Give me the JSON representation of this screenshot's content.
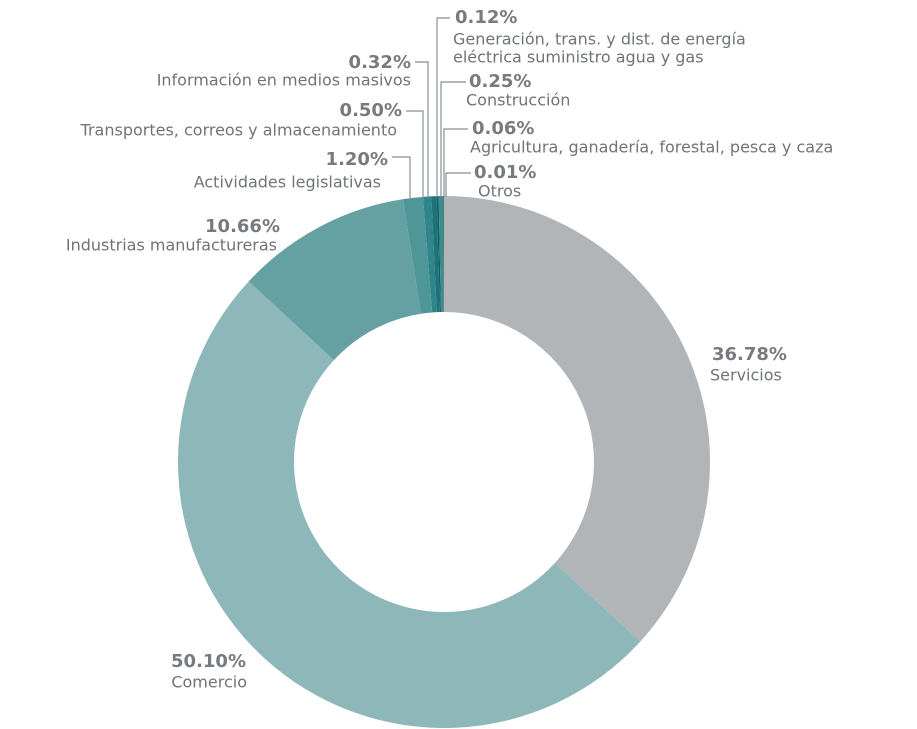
{
  "chart_data": {
    "type": "donut",
    "categories": [
      "Servicios",
      "Comercio",
      "Industrias manufactureras",
      "Actividades legislativas",
      "Transportes, correos y almacenamiento",
      "Información en medios masivos",
      [
        "Generación, trans. y dist. de energía",
        "eléctrica suministro agua y gas"
      ],
      "Construcción",
      "Agricultura, ganadería, forestal, pesca y caza",
      "Otros"
    ],
    "values": [
      36.78,
      50.1,
      10.66,
      1.2,
      0.5,
      0.32,
      0.12,
      0.25,
      0.06,
      0.01
    ],
    "value_labels": [
      "36.78%",
      "50.10%",
      "10.66%",
      "1.20%",
      "0.50%",
      "0.32%",
      "0.12%",
      "0.25%",
      "0.06%",
      "0.01%"
    ],
    "colors": [
      "#b1b5b8",
      "#8db7b9",
      "#65a0a3",
      "#4f9699",
      "#2f8589",
      "#1c7378",
      "#0f6166",
      "#3d8b8f",
      "#14686d",
      "#888d91"
    ]
  }
}
